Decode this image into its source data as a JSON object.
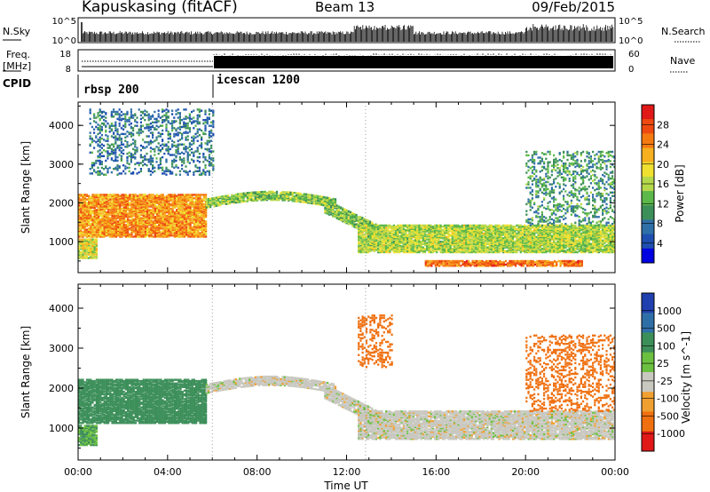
{
  "header": {
    "station": "Kapuskasing (fitACF)",
    "beam": "Beam 13",
    "date": "09/Feb/2015"
  },
  "top_panels": {
    "nsky_label": "N.Sky",
    "nsearch_label": "N.Search",
    "freq_label_1": "Freq.",
    "freq_label_2": "[MHz]",
    "nave_label": "Nave",
    "cpid_label": "CPID",
    "nsky_ticks": [
      "10^5",
      "10^0"
    ],
    "nsearch_ticks": [
      "10^5",
      "10^0"
    ],
    "freq_ticks": [
      "18",
      "8"
    ],
    "nave_ticks": [
      "60",
      "0"
    ],
    "cpid_segments": [
      {
        "label": "rbsp 200",
        "start_hr": 0,
        "end_hr": 6
      },
      {
        "label": "icescan 1200",
        "start_hr": 6,
        "end_hr": 24
      }
    ]
  },
  "chart_data": [
    {
      "type": "heatmap",
      "name": "power",
      "title": "",
      "xlabel": "",
      "ylabel": "Slant Range [km]",
      "xlim": [
        0,
        24
      ],
      "ylim": [
        200,
        4600
      ],
      "yticks": [
        1000,
        2000,
        3000,
        4000
      ],
      "colorbar": {
        "label": "Power [dB]",
        "range": [
          0,
          32
        ],
        "ticks": [
          "28",
          "24",
          "20",
          "16",
          "12",
          "8",
          "4"
        ],
        "colors": [
          "#0000e0",
          "#1e4fb0",
          "#2f6fa8",
          "#3d8f5a",
          "#5cb84a",
          "#b5d84a",
          "#f0e030",
          "#f7b020",
          "#f47a10",
          "#ee4a10",
          "#e01818"
        ]
      },
      "features": [
        {
          "desc": "early band",
          "start_hr": 0.0,
          "end_hr": 5.7,
          "range_km": [
            1100,
            2200
          ],
          "power_db": 24
        },
        {
          "desc": "near range echoes",
          "start_hr": 0.0,
          "end_hr": 0.8,
          "range_km": [
            550,
            1050
          ],
          "power_db": 18
        },
        {
          "desc": "far range",
          "start_hr": 0.5,
          "end_hr": 6.0,
          "range_km": [
            2700,
            4400
          ],
          "power_db": 7
        },
        {
          "desc": "arc",
          "start_hr": 5.7,
          "end_hr": 11.5,
          "range_km": [
            1800,
            2300
          ],
          "power_db": 14
        },
        {
          "desc": "descending band",
          "start_hr": 11.0,
          "end_hr": 13.5,
          "range_km": [
            1000,
            2000
          ],
          "power_db": 14
        },
        {
          "desc": "night band",
          "start_hr": 12.5,
          "end_hr": 24.0,
          "range_km": [
            700,
            1400
          ],
          "power_db": 16
        },
        {
          "desc": "low range strong",
          "start_hr": 15.5,
          "end_hr": 22.5,
          "range_km": [
            350,
            500
          ],
          "power_db": 26
        },
        {
          "desc": "late rise",
          "start_hr": 20.0,
          "end_hr": 24.0,
          "range_km": [
            1400,
            3300
          ],
          "power_db": 10
        }
      ]
    },
    {
      "type": "heatmap",
      "name": "velocity",
      "title": "",
      "xlabel": "Time UT",
      "ylabel": "Slant Range [km]",
      "xlim": [
        0,
        24
      ],
      "ylim": [
        200,
        4600
      ],
      "xticks": [
        "00:00",
        "04:00",
        "08:00",
        "12:00",
        "16:00",
        "20:00",
        "00:00"
      ],
      "yticks": [
        1000,
        2000,
        3000,
        4000
      ],
      "colorbar": {
        "label": "Velocity [m s^-1]",
        "ticks": [
          "1000",
          "500",
          "100",
          "25",
          "-25",
          "-100",
          "-500",
          "-1000"
        ],
        "colors": [
          "#2040b0",
          "#2f6fa8",
          "#3d8f5a",
          "#6cc040",
          "#c8c8c0",
          "#f0a030",
          "#f07010",
          "#e01818"
        ]
      },
      "features": [
        {
          "desc": "early band",
          "start_hr": 0.0,
          "end_hr": 5.7,
          "range_km": [
            1100,
            2200
          ],
          "velocity": 150
        },
        {
          "desc": "near range echoes",
          "start_hr": 0.0,
          "end_hr": 0.8,
          "range_km": [
            550,
            1050
          ],
          "velocity": 60
        },
        {
          "desc": "arc",
          "start_hr": 5.7,
          "end_hr": 11.5,
          "range_km": [
            1800,
            2300
          ],
          "velocity": 0
        },
        {
          "desc": "descending band",
          "start_hr": 11.0,
          "end_hr": 13.5,
          "range_km": [
            1000,
            2000
          ],
          "velocity": 0
        },
        {
          "desc": "night band",
          "start_hr": 12.5,
          "end_hr": 24.0,
          "range_km": [
            700,
            1400
          ],
          "velocity": 0
        },
        {
          "desc": "late echoes",
          "start_hr": 12.5,
          "end_hr": 14.0,
          "range_km": [
            2500,
            3800
          ],
          "velocity": -200
        },
        {
          "desc": "late rise",
          "start_hr": 20.0,
          "end_hr": 24.0,
          "range_km": [
            1400,
            3300
          ],
          "velocity": -250
        }
      ]
    }
  ]
}
